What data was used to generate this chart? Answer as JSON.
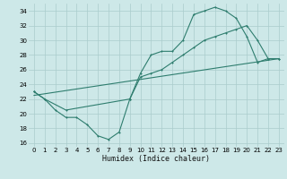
{
  "background_color": "#cde8e8",
  "grid_color": "#aacccc",
  "line_color": "#2e7d6e",
  "xlabel": "Humidex (Indice chaleur)",
  "xlim": [
    -0.5,
    23.5
  ],
  "ylim": [
    15.5,
    35.0
  ],
  "xticks": [
    0,
    1,
    2,
    3,
    4,
    5,
    6,
    7,
    8,
    9,
    10,
    11,
    12,
    13,
    14,
    15,
    16,
    17,
    18,
    19,
    20,
    21,
    22,
    23
  ],
  "yticks": [
    16,
    18,
    20,
    22,
    24,
    26,
    28,
    30,
    32,
    34
  ],
  "line1_x": [
    0,
    1,
    2,
    3,
    4,
    5,
    6,
    7,
    8,
    9,
    10,
    11,
    12,
    13,
    14,
    15,
    16,
    17,
    18,
    19,
    20,
    21,
    22,
    23
  ],
  "line1_y": [
    23,
    22,
    20.5,
    19.5,
    19.5,
    18.5,
    17,
    16.5,
    17.5,
    22,
    25.5,
    28,
    28.5,
    28.5,
    30,
    33.5,
    34,
    34.5,
    34,
    33,
    30.5,
    27,
    27.5,
    27.5
  ],
  "line2_x": [
    0,
    1,
    3,
    9,
    10,
    11,
    12,
    13,
    14,
    15,
    16,
    17,
    18,
    19,
    20,
    21,
    22,
    23
  ],
  "line2_y": [
    23,
    22,
    20.5,
    22,
    25,
    25.5,
    26,
    27,
    28,
    29,
    30,
    30.5,
    31,
    31.5,
    32,
    30,
    27.5,
    27.5
  ],
  "line3_x": [
    0,
    23
  ],
  "line3_y": [
    22.5,
    27.5
  ]
}
